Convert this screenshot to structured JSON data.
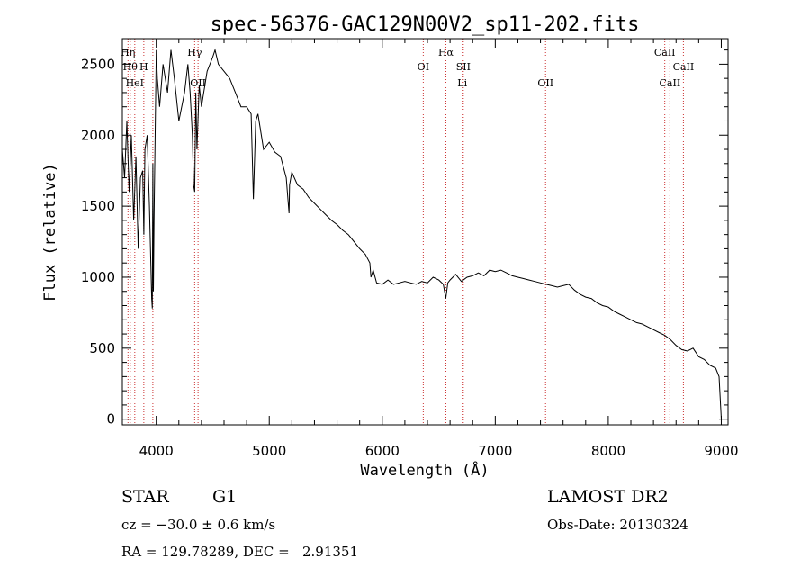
{
  "chart_data": {
    "type": "line",
    "title": "spec-56376-GAC129N00V2_sp11-202.fits",
    "xlabel": "Wavelength (Å)",
    "ylabel": "Flux (relative)",
    "xlim": [
      3700,
      9060
    ],
    "ylim": [
      -40,
      2680
    ],
    "xticks": [
      4000,
      5000,
      6000,
      7000,
      8000,
      9000
    ],
    "yticks": [
      0,
      500,
      1000,
      1500,
      2000,
      2500
    ],
    "grid": false,
    "series": [
      {
        "color": "#000000",
        "x": [
          3700,
          3720,
          3740,
          3760,
          3780,
          3800,
          3820,
          3840,
          3860,
          3880,
          3890,
          3900,
          3920,
          3940,
          3960,
          3965,
          3970,
          3975,
          3980,
          4000,
          4010,
          4030,
          4060,
          4100,
          4130,
          4160,
          4200,
          4250,
          4280,
          4300,
          4320,
          4330,
          4340,
          4350,
          4360,
          4380,
          4400,
          4450,
          4500,
          4520,
          4550,
          4600,
          4650,
          4700,
          4750,
          4800,
          4840,
          4860,
          4880,
          4900,
          4950,
          5000,
          5050,
          5100,
          5150,
          5175,
          5180,
          5200,
          5250,
          5300,
          5350,
          5400,
          5450,
          5500,
          5550,
          5600,
          5650,
          5700,
          5750,
          5800,
          5850,
          5890,
          5900,
          5920,
          5950,
          6000,
          6050,
          6100,
          6150,
          6200,
          6250,
          6300,
          6350,
          6400,
          6450,
          6500,
          6540,
          6562,
          6580,
          6600,
          6650,
          6700,
          6750,
          6800,
          6850,
          6900,
          6950,
          7000,
          7050,
          7100,
          7150,
          7200,
          7250,
          7300,
          7350,
          7400,
          7450,
          7500,
          7550,
          7600,
          7650,
          7700,
          7750,
          7800,
          7850,
          7900,
          7950,
          8000,
          8050,
          8100,
          8150,
          8200,
          8250,
          8300,
          8350,
          8400,
          8450,
          8500,
          8550,
          8600,
          8650,
          8700,
          8750,
          8800,
          8850,
          8900,
          8950,
          8980,
          9000
        ],
        "y": [
          1900,
          1700,
          2100,
          1600,
          2000,
          1400,
          1850,
          1200,
          1700,
          1750,
          1300,
          1900,
          2000,
          1500,
          850,
          780,
          1800,
          900,
          1400,
          2600,
          2400,
          2200,
          2500,
          2300,
          2600,
          2400,
          2100,
          2300,
          2500,
          2300,
          2000,
          1650,
          1600,
          2300,
          1900,
          2350,
          2200,
          2450,
          2550,
          2600,
          2500,
          2450,
          2400,
          2300,
          2200,
          2200,
          2150,
          1550,
          2100,
          2150,
          1900,
          1950,
          1880,
          1850,
          1700,
          1450,
          1650,
          1740,
          1650,
          1620,
          1560,
          1520,
          1480,
          1440,
          1400,
          1370,
          1330,
          1300,
          1250,
          1200,
          1160,
          1100,
          1000,
          1050,
          960,
          950,
          980,
          950,
          960,
          970,
          960,
          950,
          970,
          960,
          1000,
          980,
          950,
          850,
          960,
          980,
          1020,
          970,
          1000,
          1010,
          1030,
          1010,
          1050,
          1040,
          1050,
          1030,
          1010,
          1000,
          990,
          980,
          970,
          960,
          950,
          940,
          930,
          940,
          950,
          910,
          880,
          860,
          850,
          820,
          800,
          790,
          760,
          740,
          720,
          700,
          680,
          670,
          650,
          630,
          610,
          590,
          560,
          520,
          490,
          480,
          500,
          440,
          420,
          380,
          360,
          300,
          0
        ]
      }
    ],
    "line_markers": [
      {
        "wavelength": 3750,
        "label": "Hη",
        "row": 0
      },
      {
        "wavelength": 3770,
        "label": "Hθ",
        "row": 1
      },
      {
        "wavelength": 3810,
        "label": "HeI",
        "row": 2
      },
      {
        "wavelength": 3890,
        "label": "H",
        "row": 1
      },
      {
        "wavelength": 3970,
        "label": "",
        "row": 1
      },
      {
        "wavelength": 4340,
        "label": "Hγ",
        "row": 0
      },
      {
        "wavelength": 4370,
        "label": "OII",
        "row": 2
      },
      {
        "wavelength": 6363,
        "label": "OI",
        "row": 1
      },
      {
        "wavelength": 6563,
        "label": "Hα",
        "row": 0
      },
      {
        "wavelength": 6717,
        "label": "SII",
        "row": 1
      },
      {
        "wavelength": 6708,
        "label": "Li",
        "row": 2
      },
      {
        "wavelength": 7445,
        "label": "OII",
        "row": 2
      },
      {
        "wavelength": 8500,
        "label": "CaII",
        "row": 0
      },
      {
        "wavelength": 8545,
        "label": "CaII",
        "row": 2
      },
      {
        "wavelength": 8665,
        "label": "CaII",
        "row": 1
      }
    ]
  },
  "footer": {
    "object_class": "STAR",
    "subclass": "G1",
    "survey": "LAMOST DR2",
    "redshift": "cz = −30.0 ± 0.6 km/s",
    "obs_date": "Obs-Date: 20130324",
    "coords": "RA = 129.78289, DEC =   2.91351"
  }
}
